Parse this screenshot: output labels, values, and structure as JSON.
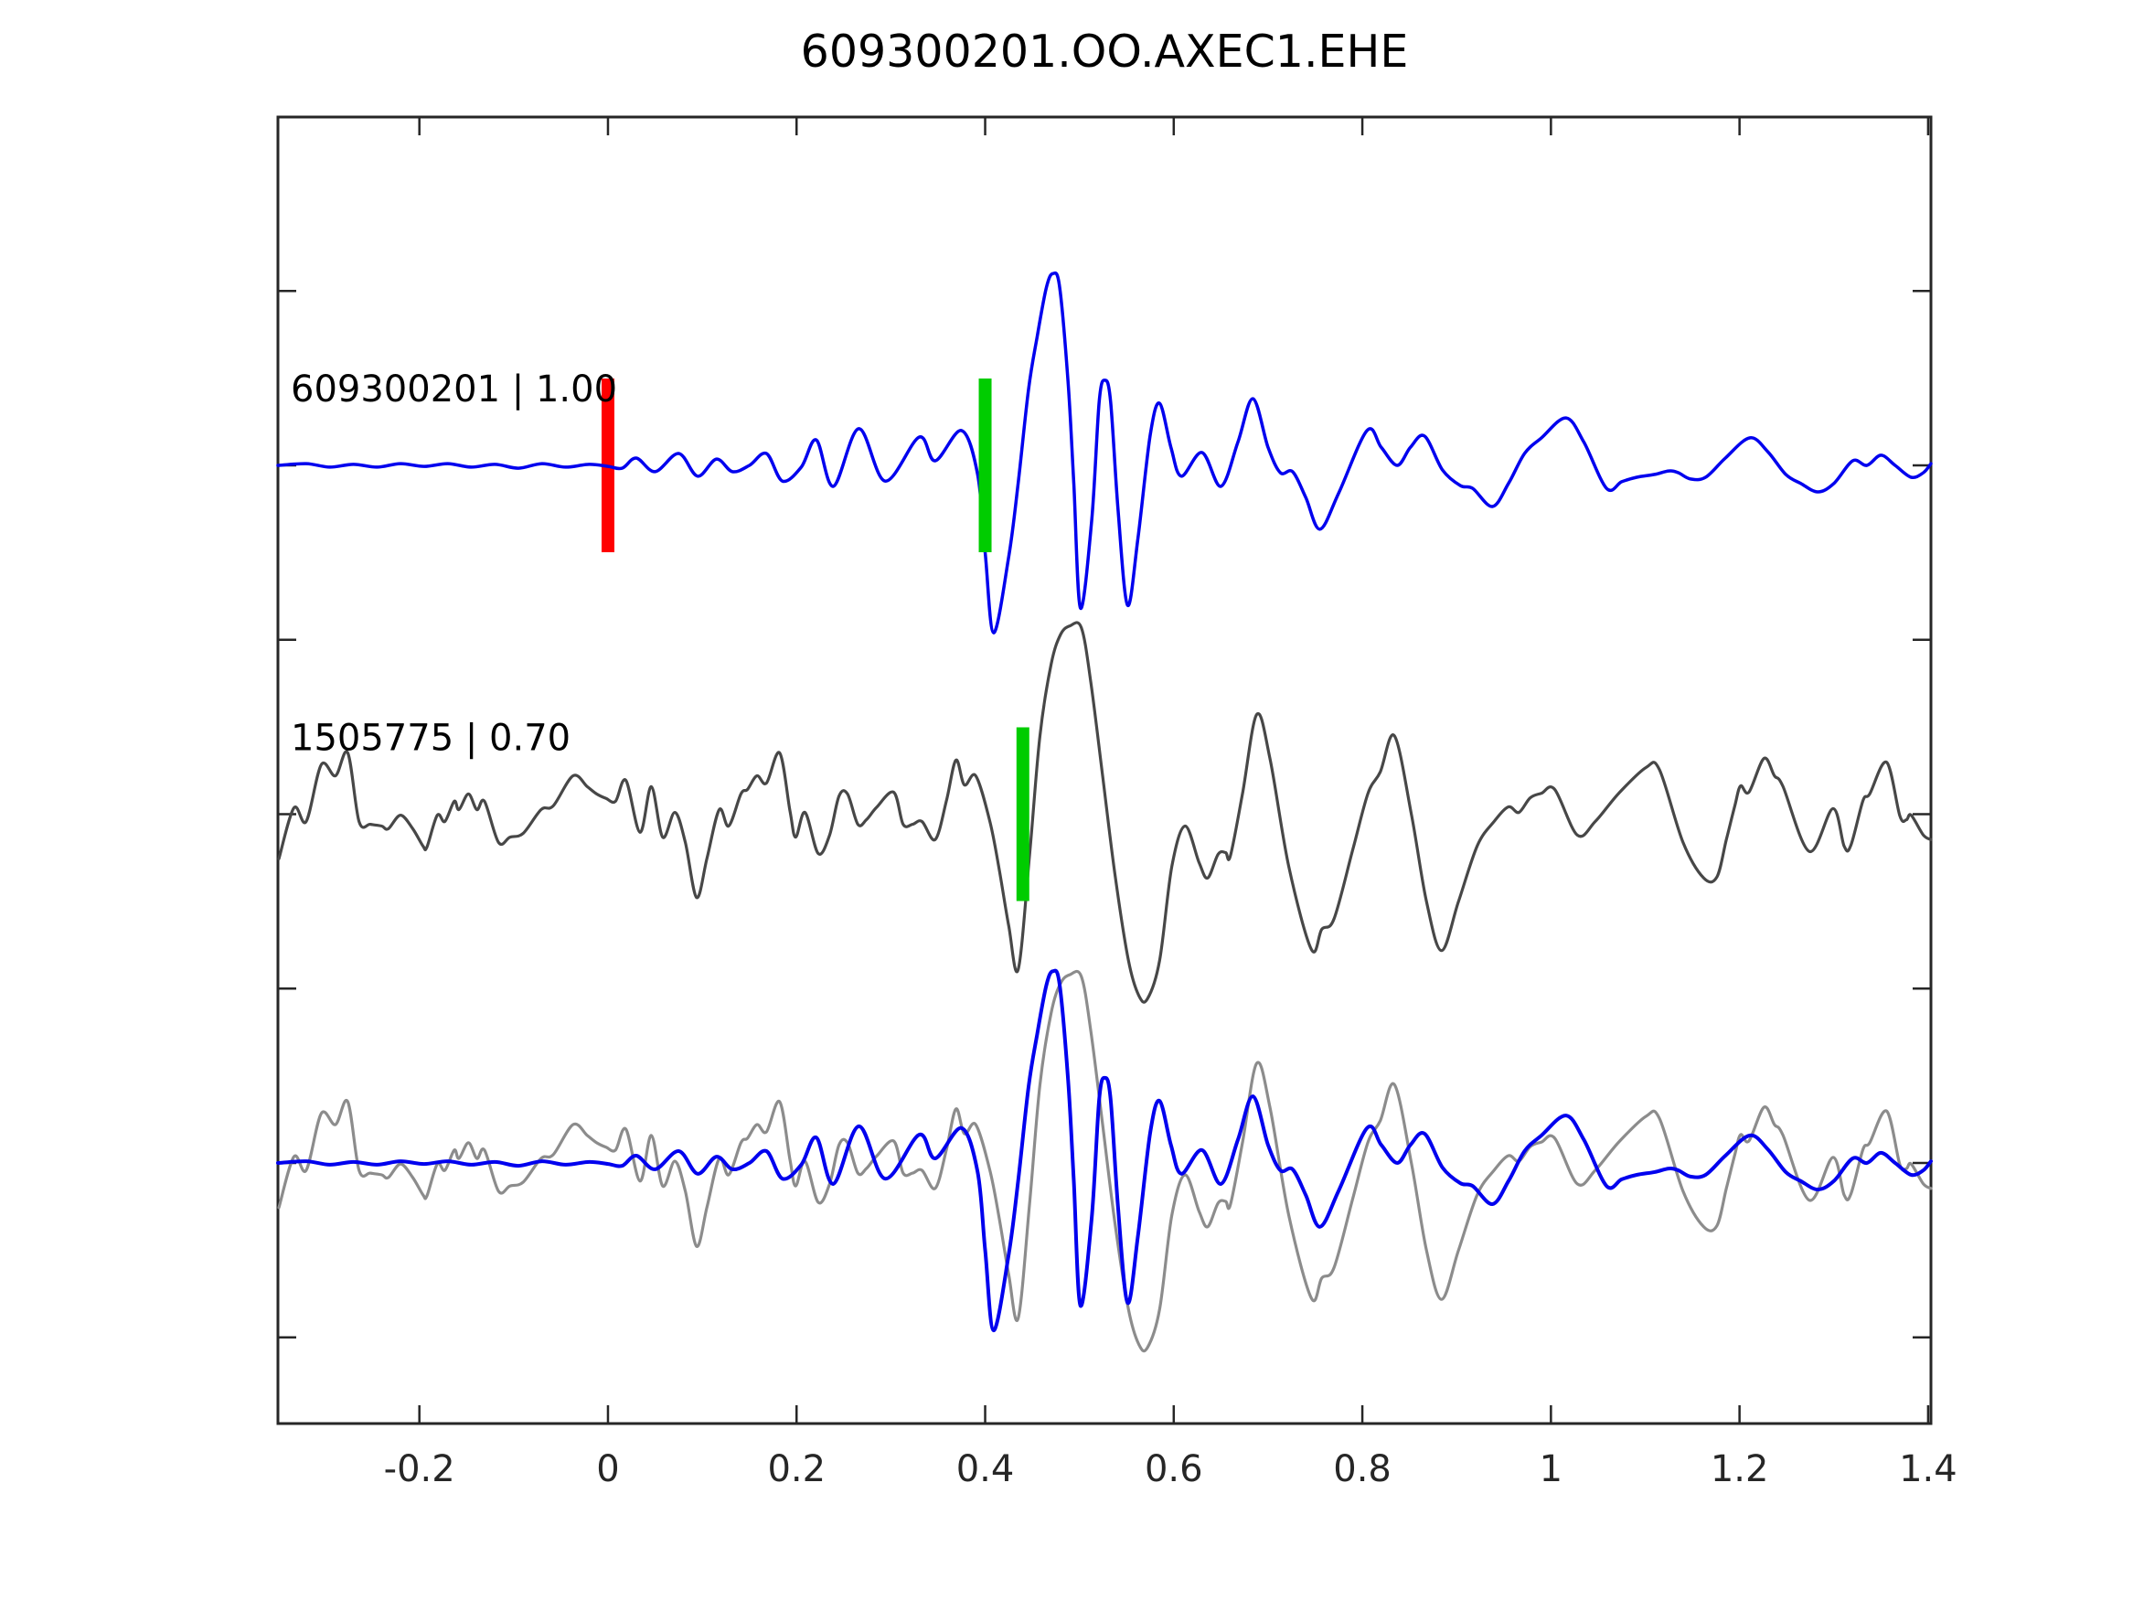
{
  "title": "609300201.OO.AXEC1.EHE",
  "colors": {
    "reference_trace": "#0000EE",
    "candidate_trace": "#474747",
    "overlay_candidate": "#8C8C8C",
    "pick_marker": "#00CC00",
    "zero_marker": "#FF0000",
    "axis": "#262626",
    "background": "#FFFFFF"
  },
  "chart_data": {
    "type": "line",
    "title": "609300201.OO.AXEC1.EHE",
    "xlabel": "",
    "ylabel": "",
    "grid": false,
    "legend": "none",
    "xlim": [
      -0.35,
      1.403
    ],
    "x_ticks": [
      "-0.2",
      "0",
      "0.2",
      "0.4",
      "0.6",
      "0.8",
      "1",
      "1.2",
      "1.4"
    ],
    "x_tick_values": [
      -0.2,
      0,
      0.2,
      0.4,
      0.6,
      0.8,
      1.0,
      1.2,
      1.4
    ],
    "y_ticks_unlabeled_offsets": [
      0.5,
      1.0,
      1.5,
      2.0,
      2.5,
      3.0,
      3.5
    ],
    "panels": [
      {
        "name": "reference",
        "offset": 3,
        "label": "609300201 | 1.00",
        "layers": [
          {
            "series": "trace_609300201",
            "color": "#0000EE",
            "width": 3.5
          }
        ],
        "markers": [
          {
            "t": 0.0,
            "color": "#FF0000",
            "z": "below",
            "name": "zero-time-marker"
          },
          {
            "t": 0.4,
            "color": "#00CC00",
            "z": "above",
            "name": "pick-marker-reference"
          }
        ]
      },
      {
        "name": "candidate",
        "offset": 2,
        "label": "1505775 | 0.70",
        "layers": [
          {
            "series": "trace_1505775",
            "color": "#474747",
            "width": 3.2
          }
        ],
        "markers": [
          {
            "t": 0.44,
            "color": "#00CC00",
            "z": "above",
            "name": "pick-marker-candidate"
          }
        ]
      },
      {
        "name": "overlay",
        "offset": 1,
        "label": "",
        "layers": [
          {
            "series": "trace_1505775",
            "color": "#8C8C8C",
            "width": 3.2
          },
          {
            "series": "trace_609300201",
            "color": "#0000EE",
            "width": 4.0
          }
        ],
        "markers": []
      }
    ],
    "series": {
      "trace_609300201": [
        [
          -0.35,
          0.0
        ],
        [
          -0.32,
          0.005
        ],
        [
          -0.295,
          -0.005
        ],
        [
          -0.27,
          0.003
        ],
        [
          -0.245,
          -0.005
        ],
        [
          -0.22,
          0.005
        ],
        [
          -0.195,
          -0.003
        ],
        [
          -0.17,
          0.005
        ],
        [
          -0.145,
          -0.005
        ],
        [
          -0.12,
          0.003
        ],
        [
          -0.095,
          -0.008
        ],
        [
          -0.07,
          0.005
        ],
        [
          -0.045,
          -0.005
        ],
        [
          -0.02,
          0.003
        ],
        [
          0.0,
          -0.003
        ],
        [
          0.015,
          -0.008
        ],
        [
          0.03,
          0.021
        ],
        [
          0.05,
          -0.018
        ],
        [
          0.075,
          0.034
        ],
        [
          0.095,
          -0.031
        ],
        [
          0.115,
          0.018
        ],
        [
          0.132,
          -0.018
        ],
        [
          0.15,
          0.0
        ],
        [
          0.168,
          0.034
        ],
        [
          0.185,
          -0.045
        ],
        [
          0.205,
          -0.005
        ],
        [
          0.221,
          0.073
        ],
        [
          0.239,
          -0.06
        ],
        [
          0.266,
          0.105
        ],
        [
          0.294,
          -0.045
        ],
        [
          0.33,
          0.081
        ],
        [
          0.347,
          0.013
        ],
        [
          0.375,
          0.1
        ],
        [
          0.392,
          -0.026
        ],
        [
          0.4,
          -0.249
        ],
        [
          0.409,
          -0.48
        ],
        [
          0.425,
          -0.262
        ],
        [
          0.435,
          -0.052
        ],
        [
          0.446,
          0.218
        ],
        [
          0.455,
          0.367
        ],
        [
          0.465,
          0.511
        ],
        [
          0.472,
          0.55
        ],
        [
          0.479,
          0.511
        ],
        [
          0.488,
          0.236
        ],
        [
          0.494,
          -0.052
        ],
        [
          0.501,
          -0.409
        ],
        [
          0.513,
          -0.157
        ],
        [
          0.521,
          0.184
        ],
        [
          0.527,
          0.244
        ],
        [
          0.533,
          0.184
        ],
        [
          0.541,
          -0.131
        ],
        [
          0.551,
          -0.401
        ],
        [
          0.562,
          -0.21
        ],
        [
          0.575,
          0.086
        ],
        [
          0.585,
          0.178
        ],
        [
          0.597,
          0.052
        ],
        [
          0.608,
          -0.031
        ],
        [
          0.63,
          0.037
        ],
        [
          0.65,
          -0.06
        ],
        [
          0.668,
          0.066
        ],
        [
          0.684,
          0.191
        ],
        [
          0.7,
          0.052
        ],
        [
          0.713,
          -0.021
        ],
        [
          0.726,
          -0.018
        ],
        [
          0.74,
          -0.092
        ],
        [
          0.755,
          -0.183
        ],
        [
          0.775,
          -0.079
        ],
        [
          0.805,
          0.1
        ],
        [
          0.82,
          0.052
        ],
        [
          0.837,
          0.0
        ],
        [
          0.851,
          0.052
        ],
        [
          0.866,
          0.084
        ],
        [
          0.885,
          -0.013
        ],
        [
          0.904,
          -0.058
        ],
        [
          0.917,
          -0.066
        ],
        [
          0.938,
          -0.118
        ],
        [
          0.955,
          -0.052
        ],
        [
          0.972,
          0.034
        ],
        [
          0.99,
          0.079
        ],
        [
          1.016,
          0.136
        ],
        [
          1.035,
          0.066
        ],
        [
          1.059,
          -0.066
        ],
        [
          1.075,
          -0.047
        ],
        [
          1.091,
          -0.034
        ],
        [
          1.11,
          -0.026
        ],
        [
          1.125,
          -0.016
        ],
        [
          1.135,
          -0.021
        ],
        [
          1.148,
          -0.039
        ],
        [
          1.164,
          -0.034
        ],
        [
          1.185,
          0.021
        ],
        [
          1.211,
          0.079
        ],
        [
          1.23,
          0.039
        ],
        [
          1.249,
          -0.026
        ],
        [
          1.265,
          -0.052
        ],
        [
          1.283,
          -0.076
        ],
        [
          1.3,
          -0.052
        ],
        [
          1.32,
          0.013
        ],
        [
          1.335,
          0.0
        ],
        [
          1.35,
          0.029
        ],
        [
          1.365,
          0.0
        ],
        [
          1.382,
          -0.034
        ],
        [
          1.395,
          -0.021
        ],
        [
          1.403,
          0.005
        ]
      ],
      "trace_1505775": [
        [
          -0.349,
          -0.128
        ],
        [
          -0.333,
          0.018
        ],
        [
          -0.32,
          -0.021
        ],
        [
          -0.304,
          0.142
        ],
        [
          -0.289,
          0.11
        ],
        [
          -0.276,
          0.176
        ],
        [
          -0.264,
          -0.021
        ],
        [
          -0.252,
          -0.029
        ],
        [
          -0.24,
          -0.034
        ],
        [
          -0.233,
          -0.042
        ],
        [
          -0.22,
          -0.003
        ],
        [
          -0.207,
          -0.042
        ],
        [
          -0.196,
          -0.092
        ],
        [
          -0.192,
          -0.094
        ],
        [
          -0.181,
          -0.003
        ],
        [
          -0.173,
          -0.021
        ],
        [
          -0.163,
          0.037
        ],
        [
          -0.158,
          0.013
        ],
        [
          -0.148,
          0.058
        ],
        [
          -0.139,
          0.013
        ],
        [
          -0.131,
          0.037
        ],
        [
          -0.116,
          -0.081
        ],
        [
          -0.104,
          -0.066
        ],
        [
          -0.09,
          -0.055
        ],
        [
          -0.071,
          0.013
        ],
        [
          -0.058,
          0.024
        ],
        [
          -0.037,
          0.11
        ],
        [
          -0.022,
          0.079
        ],
        [
          -0.012,
          0.058
        ],
        [
          -0.002,
          0.045
        ],
        [
          0.008,
          0.037
        ],
        [
          0.019,
          0.097
        ],
        [
          0.034,
          -0.052
        ],
        [
          0.046,
          0.079
        ],
        [
          0.058,
          -0.066
        ],
        [
          0.071,
          0.005
        ],
        [
          0.082,
          -0.081
        ],
        [
          0.094,
          -0.239
        ],
        [
          0.105,
          -0.126
        ],
        [
          0.118,
          0.013
        ],
        [
          0.128,
          -0.034
        ],
        [
          0.141,
          0.058
        ],
        [
          0.148,
          0.071
        ],
        [
          0.158,
          0.11
        ],
        [
          0.168,
          0.089
        ],
        [
          0.182,
          0.176
        ],
        [
          0.193,
          0.01
        ],
        [
          0.199,
          -0.066
        ],
        [
          0.209,
          0.005
        ],
        [
          0.223,
          -0.113
        ],
        [
          0.235,
          -0.06
        ],
        [
          0.245,
          0.052
        ],
        [
          0.254,
          0.058
        ],
        [
          0.265,
          -0.029
        ],
        [
          0.274,
          -0.016
        ],
        [
          0.285,
          0.02
        ],
        [
          0.303,
          0.063
        ],
        [
          0.313,
          -0.029
        ],
        [
          0.323,
          -0.029
        ],
        [
          0.333,
          -0.021
        ],
        [
          0.347,
          -0.073
        ],
        [
          0.359,
          0.039
        ],
        [
          0.369,
          0.155
        ],
        [
          0.378,
          0.084
        ],
        [
          0.39,
          0.11
        ],
        [
          0.405,
          -0.021
        ],
        [
          0.415,
          -0.16
        ],
        [
          0.425,
          -0.32
        ],
        [
          0.435,
          -0.446
        ],
        [
          0.447,
          -0.12
        ],
        [
          0.458,
          0.223
        ],
        [
          0.47,
          0.43
        ],
        [
          0.48,
          0.515
        ],
        [
          0.49,
          0.54
        ],
        [
          0.502,
          0.535
        ],
        [
          0.512,
          0.38
        ],
        [
          0.525,
          0.1
        ],
        [
          0.538,
          -0.18
        ],
        [
          0.552,
          -0.42
        ],
        [
          0.563,
          -0.52
        ],
        [
          0.572,
          -0.53
        ],
        [
          0.585,
          -0.42
        ],
        [
          0.598,
          -0.15
        ],
        [
          0.612,
          -0.034
        ],
        [
          0.627,
          -0.14
        ],
        [
          0.636,
          -0.183
        ],
        [
          0.647,
          -0.115
        ],
        [
          0.655,
          -0.11
        ],
        [
          0.66,
          -0.12
        ],
        [
          0.673,
          0.06
        ],
        [
          0.688,
          0.286
        ],
        [
          0.702,
          0.16
        ],
        [
          0.722,
          -0.15
        ],
        [
          0.746,
          -0.388
        ],
        [
          0.757,
          -0.33
        ],
        [
          0.77,
          -0.3
        ],
        [
          0.79,
          -0.1
        ],
        [
          0.806,
          0.06
        ],
        [
          0.819,
          0.121
        ],
        [
          0.834,
          0.225
        ],
        [
          0.852,
          0.0
        ],
        [
          0.868,
          -0.25
        ],
        [
          0.884,
          -0.391
        ],
        [
          0.902,
          -0.25
        ],
        [
          0.922,
          -0.09
        ],
        [
          0.94,
          -0.02
        ],
        [
          0.955,
          0.021
        ],
        [
          0.966,
          0.005
        ],
        [
          0.978,
          0.047
        ],
        [
          0.99,
          0.06
        ],
        [
          1.004,
          0.071
        ],
        [
          1.028,
          -0.06
        ],
        [
          1.047,
          -0.021
        ],
        [
          1.072,
          0.06
        ],
        [
          1.101,
          0.134
        ],
        [
          1.115,
          0.128
        ],
        [
          1.14,
          -0.08
        ],
        [
          1.162,
          -0.183
        ],
        [
          1.176,
          -0.18
        ],
        [
          1.186,
          -0.073
        ],
        [
          1.195,
          0.024
        ],
        [
          1.201,
          0.081
        ],
        [
          1.21,
          0.063
        ],
        [
          1.226,
          0.16
        ],
        [
          1.237,
          0.11
        ],
        [
          1.246,
          0.08
        ],
        [
          1.274,
          -0.107
        ],
        [
          1.299,
          0.016
        ],
        [
          1.311,
          -0.092
        ],
        [
          1.318,
          -0.09
        ],
        [
          1.331,
          0.039
        ],
        [
          1.338,
          0.058
        ],
        [
          1.356,
          0.149
        ],
        [
          1.37,
          -0.005
        ],
        [
          1.377,
          -0.016
        ],
        [
          1.382,
          -0.003
        ],
        [
          1.395,
          -0.06
        ],
        [
          1.403,
          -0.073
        ]
      ]
    }
  }
}
